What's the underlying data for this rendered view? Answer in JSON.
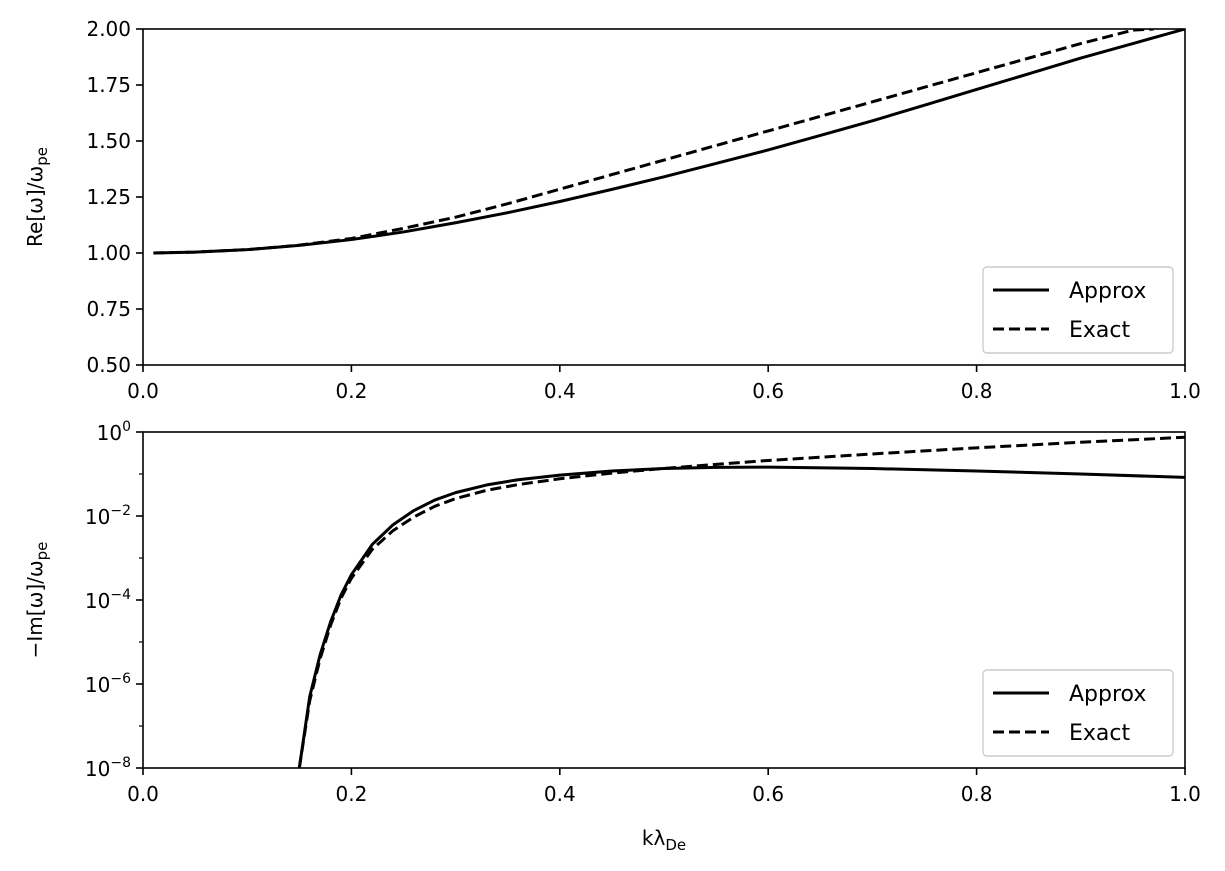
{
  "chart_data": [
    {
      "type": "line",
      "ylabel": "Re[ω]/ω",
      "ylabel_sub": "pe",
      "xlim": [
        0.0,
        1.0
      ],
      "ylim": [
        0.5,
        2.0
      ],
      "yscale": "linear",
      "xticks": [
        "0.0",
        "0.2",
        "0.4",
        "0.6",
        "0.8",
        "1.0"
      ],
      "yticks": [
        "0.50",
        "0.75",
        "1.00",
        "1.25",
        "1.50",
        "1.75",
        "2.00"
      ],
      "legend": {
        "position": "lower-right",
        "entries": [
          "Approx",
          "Exact"
        ]
      },
      "series": [
        {
          "name": "Approx",
          "style": "solid",
          "color": "#000000",
          "x": [
            0.01,
            0.05,
            0.1,
            0.15,
            0.2,
            0.25,
            0.3,
            0.35,
            0.4,
            0.45,
            0.5,
            0.55,
            0.6,
            0.65,
            0.7,
            0.75,
            0.8,
            0.85,
            0.9,
            0.95,
            1.0
          ],
          "y": [
            1.0,
            1.004,
            1.015,
            1.034,
            1.06,
            1.094,
            1.135,
            1.18,
            1.23,
            1.284,
            1.34,
            1.4,
            1.46,
            1.525,
            1.59,
            1.66,
            1.73,
            1.8,
            1.87,
            1.935,
            2.0
          ]
        },
        {
          "name": "Exact",
          "style": "dashed",
          "color": "#000000",
          "x": [
            0.01,
            0.05,
            0.1,
            0.15,
            0.2,
            0.25,
            0.3,
            0.35,
            0.4,
            0.45,
            0.5,
            0.55,
            0.6,
            0.65,
            0.7,
            0.75,
            0.8,
            0.85,
            0.9,
            0.95,
            0.97
          ],
          "y": [
            1.0,
            1.004,
            1.015,
            1.035,
            1.065,
            1.11,
            1.16,
            1.22,
            1.285,
            1.35,
            1.415,
            1.48,
            1.545,
            1.61,
            1.675,
            1.74,
            1.805,
            1.87,
            1.935,
            1.995,
            2.0
          ]
        }
      ]
    },
    {
      "type": "line",
      "xlabel": "kλ",
      "xlabel_sub": "De",
      "ylabel": "−Im[ω]/ω",
      "ylabel_sub": "pe",
      "xlim": [
        0.0,
        1.0
      ],
      "ylim": [
        1e-08,
        1.0
      ],
      "yscale": "log",
      "xticks": [
        "0.0",
        "0.2",
        "0.4",
        "0.6",
        "0.8",
        "1.0"
      ],
      "yticks": [
        {
          "base": "10",
          "exp": "0"
        },
        {
          "base": "10",
          "exp": "−2"
        },
        {
          "base": "10",
          "exp": "−4"
        },
        {
          "base": "10",
          "exp": "−6"
        },
        {
          "base": "10",
          "exp": "−8"
        }
      ],
      "legend": {
        "position": "lower-right",
        "entries": [
          "Approx",
          "Exact"
        ]
      },
      "series": [
        {
          "name": "Approx",
          "style": "solid",
          "color": "#000000",
          "x": [
            0.15,
            0.16,
            0.17,
            0.18,
            0.19,
            0.2,
            0.22,
            0.24,
            0.26,
            0.28,
            0.3,
            0.33,
            0.36,
            0.4,
            0.45,
            0.5,
            0.55,
            0.6,
            0.7,
            0.8,
            0.9,
            1.0
          ],
          "y": [
            1e-08,
            5e-07,
            5e-06,
            3e-05,
            0.00013,
            0.0004,
            0.0021,
            0.0062,
            0.0135,
            0.024,
            0.036,
            0.055,
            0.073,
            0.094,
            0.118,
            0.135,
            0.144,
            0.146,
            0.135,
            0.118,
            0.1,
            0.083
          ]
        },
        {
          "name": "Exact",
          "style": "dashed",
          "color": "#000000",
          "x": [
            0.15,
            0.16,
            0.17,
            0.18,
            0.19,
            0.2,
            0.22,
            0.24,
            0.26,
            0.28,
            0.3,
            0.33,
            0.36,
            0.4,
            0.45,
            0.5,
            0.55,
            0.6,
            0.7,
            0.8,
            0.9,
            1.0
          ],
          "y": [
            1e-08,
            4e-07,
            4e-06,
            2.5e-05,
            0.00011,
            0.00033,
            0.0016,
            0.0045,
            0.0095,
            0.017,
            0.026,
            0.041,
            0.056,
            0.077,
            0.105,
            0.136,
            0.17,
            0.21,
            0.3,
            0.42,
            0.57,
            0.75
          ]
        }
      ]
    }
  ]
}
